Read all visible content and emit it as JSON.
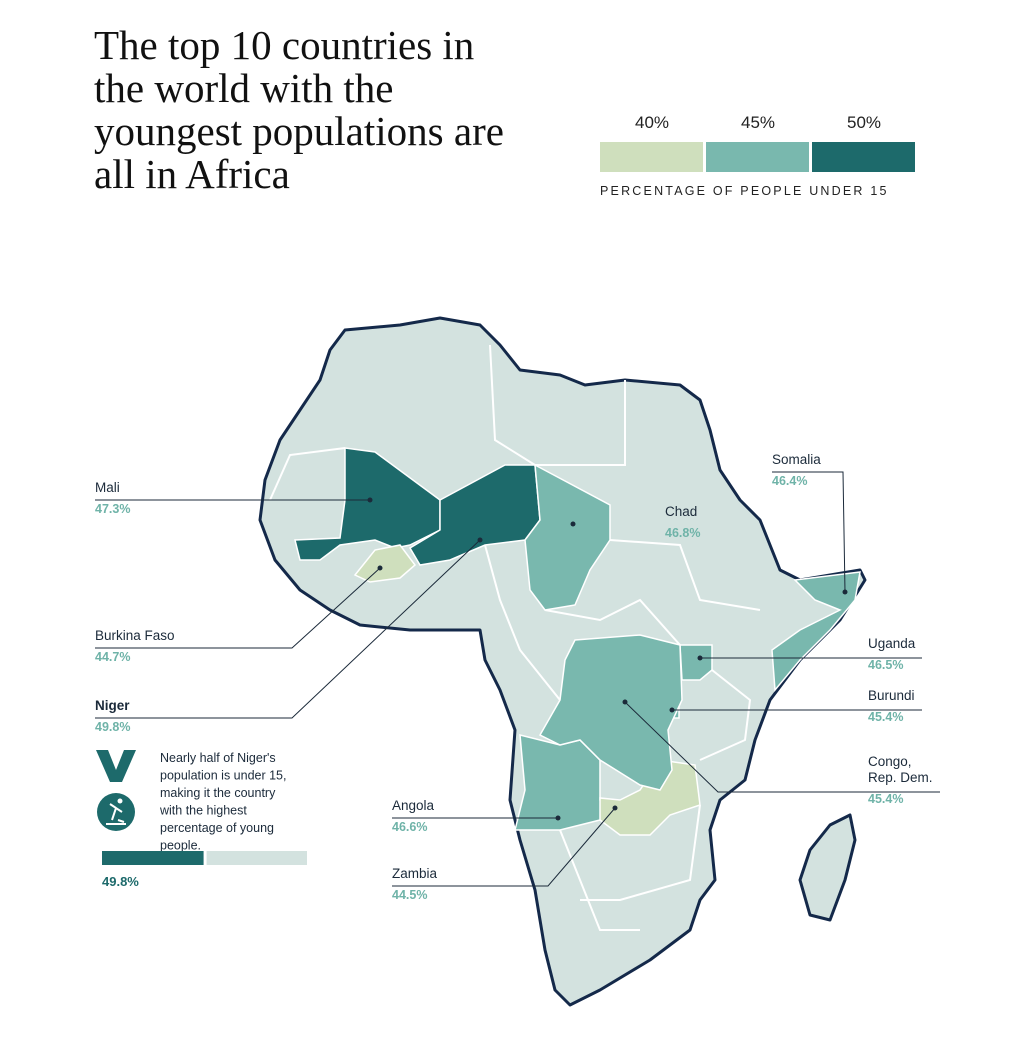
{
  "title": "The top 10 countries in the world with the youngest populations are all in Africa",
  "legend": {
    "ticks": [
      {
        "value": 40,
        "label": "40%"
      },
      {
        "value": 45,
        "label": "45%"
      },
      {
        "value": 50,
        "label": "50%"
      }
    ],
    "colors": [
      "#cfdfbd",
      "#79b8ae",
      "#1d6a6b"
    ],
    "caption": "PERCENTAGE OF PEOPLE UNDER 15"
  },
  "countries": [
    {
      "name": "Mali",
      "value": 47.3,
      "label": "47.3%",
      "color": "#1d6a6b"
    },
    {
      "name": "Burkina Faso",
      "value": 44.7,
      "label": "44.7%",
      "color": "#cfdfbd"
    },
    {
      "name": "Niger",
      "value": 49.8,
      "label": "49.8%",
      "color": "#1d6a6b"
    },
    {
      "name": "Angola",
      "value": 46.6,
      "label": "46.6%",
      "color": "#79b8ae"
    },
    {
      "name": "Zambia",
      "value": 44.5,
      "label": "44.5%",
      "color": "#cfdfbd"
    },
    {
      "name": "Somalia",
      "value": 46.4,
      "label": "46.4%",
      "color": "#79b8ae"
    },
    {
      "name": "Chad",
      "value": 46.8,
      "label": "46.8%",
      "color": "#79b8ae"
    },
    {
      "name": "Uganda",
      "value": 46.5,
      "label": "46.5%",
      "color": "#79b8ae"
    },
    {
      "name": "Burundi",
      "value": 45.4,
      "label": "45.4%",
      "color": "#79b8ae"
    },
    {
      "name": "Congo, Rep. Dem.",
      "value": 45.4,
      "label": "45.4%",
      "color": "#79b8ae"
    }
  ],
  "highlight": {
    "text": "Nearly half of Niger's population is under 15, making it the country with the highest percentage of young people.",
    "value": 49.8,
    "label": "49.8%",
    "xlim": [
      0,
      100
    ],
    "color": "#1d6a6b",
    "track_color": "#d3e2df"
  }
}
